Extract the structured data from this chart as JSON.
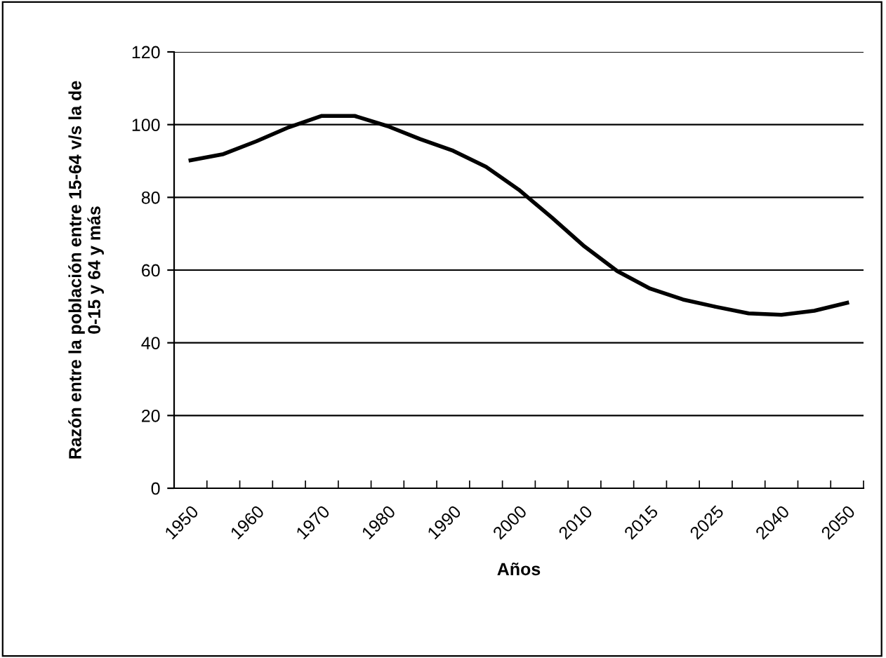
{
  "chart_data": {
    "type": "line",
    "xlabel": "Años",
    "ylabel": "Razón entre la población entre 15-64 v/s la de\n0-15 y 64 y más",
    "categories": [
      "1950",
      null,
      "1960",
      null,
      "1970",
      null,
      "1980",
      null,
      "1990",
      null,
      "2000",
      null,
      "2010",
      null,
      "2015",
      null,
      "2025",
      null,
      "2040",
      null,
      "2050"
    ],
    "series": [
      {
        "color": "#000000",
        "values": [
          90.2,
          91.9,
          95.4,
          99.3,
          102.4,
          102.4,
          99.6,
          96,
          92.8,
          88.4,
          82.1,
          74.5,
          66.5,
          59.7,
          54.9,
          51.9,
          49.9,
          48.1,
          47.7,
          48.8,
          51
        ]
      }
    ],
    "ylim": [
      0,
      120
    ],
    "yticks": [
      0,
      20,
      40,
      60,
      80,
      100,
      120
    ],
    "grid": "y",
    "legend": false,
    "marker": "none",
    "line_style": "solid"
  }
}
